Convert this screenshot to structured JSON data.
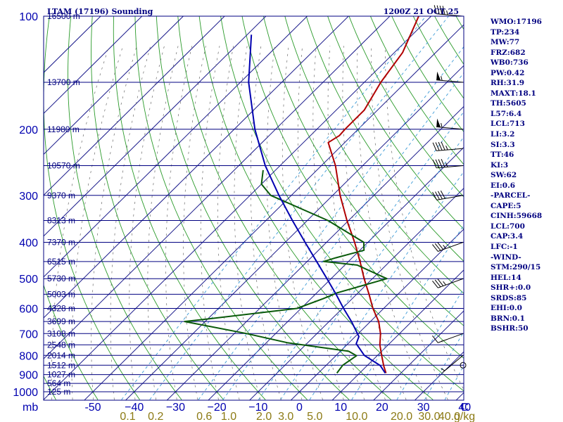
{
  "header": {
    "title": "LTAM (17196) Sounding",
    "time": "1200Z 21 OCT 25"
  },
  "indices": [
    "WMO:17196",
    "TP:234",
    "MW:77",
    "FRZ:682",
    "WB0:736",
    "PW:0.42",
    "RH:31.9",
    "MAXT:18.1",
    "TH:5605",
    "L57:6.4",
    "LCL:713",
    "LI:3.2",
    "SI:3.3",
    "TT:46",
    "KI:3",
    "SW:62",
    "EI:0.6",
    "-PARCEL-",
    "CAPE:5",
    "CINH:59668",
    "LCL:700",
    "CAP:3.4",
    "LFC:-1",
    "-WIND-",
    "STM:290/15",
    "HEL:14",
    "SHR+:0.0",
    "SRDS:85",
    "EHI:0.0",
    "BRN:0.1",
    "BSHR:50"
  ],
  "colors": {
    "isobar": "#000080",
    "isotherm": "#1c1c8c",
    "dry_adiabat": "#2a9a2a",
    "mixing_ratio": "#6b6b6b",
    "temperature": "#b00000",
    "dewpoint": "#0a5a0a",
    "parcel": "#0000b0",
    "wind": "#000000"
  },
  "chart_data": {
    "type": "skew-t",
    "pressure_unit": "mb",
    "temperature_unit": "C",
    "pressure_ticks": [
      100,
      200,
      300,
      400,
      500,
      600,
      700,
      800,
      900,
      1000
    ],
    "temperature_ticks": [
      -50,
      -40,
      -30,
      -20,
      -10,
      0,
      10,
      20,
      30,
      40
    ],
    "temperature_tick_labels": [
      "-50",
      "−40",
      "−30",
      "−20",
      "−10",
      "0",
      "10",
      "20",
      "30",
      "40"
    ],
    "axis_unit_label": "mb",
    "corner_label": "C",
    "height_labels": [
      {
        "p": 100,
        "label": "16500 m"
      },
      {
        "p": 150,
        "label": "13700 m"
      },
      {
        "p": 200,
        "label": "11980 m"
      },
      {
        "p": 250,
        "label": "10570 m"
      },
      {
        "p": 300,
        "label": "9370 m"
      },
      {
        "p": 350,
        "label": "8313 m"
      },
      {
        "p": 400,
        "label": "7370 m"
      },
      {
        "p": 450,
        "label": "6515 m"
      },
      {
        "p": 500,
        "label": "5730 m"
      },
      {
        "p": 550,
        "label": "5003 m"
      },
      {
        "p": 600,
        "label": "4328 m"
      },
      {
        "p": 650,
        "label": "3699 m"
      },
      {
        "p": 700,
        "label": "3108 m"
      },
      {
        "p": 750,
        "label": "2548 m"
      },
      {
        "p": 800,
        "label": "2014 m"
      },
      {
        "p": 850,
        "label": "1512 m"
      },
      {
        "p": 900,
        "label": "1027 m"
      },
      {
        "p": 950,
        "label": "564 m"
      },
      {
        "p": 1000,
        "label": "125 m"
      }
    ],
    "mixing_ratio_labels": [
      "0.1",
      "0.2",
      "0.6",
      "1.0",
      "2.0",
      "3.0",
      "5.0",
      "10.0",
      "20.0",
      "30.0",
      "40.0"
    ],
    "mixing_ratio_values": [
      0.1,
      0.2,
      0.6,
      1.0,
      2.0,
      3.0,
      5.0,
      10.0,
      20.0,
      30.0,
      40.0
    ],
    "mixing_ratio_unit": "g/kg",
    "series": [
      {
        "name": "temperature",
        "points": [
          [
            892,
            16.4
          ],
          [
            852,
            14.0
          ],
          [
            800,
            11.0
          ],
          [
            750,
            8.0
          ],
          [
            700,
            5.4
          ],
          [
            650,
            2.0
          ],
          [
            600,
            -2.6
          ],
          [
            550,
            -7.0
          ],
          [
            500,
            -12.0
          ],
          [
            450,
            -17.2
          ],
          [
            400,
            -23.2
          ],
          [
            350,
            -30.4
          ],
          [
            300,
            -38.2
          ],
          [
            250,
            -46.6
          ],
          [
            217,
            -54.0
          ],
          [
            208,
            -53.0
          ],
          [
            200,
            -53.2
          ],
          [
            178,
            -53.2
          ],
          [
            150,
            -56.0
          ],
          [
            125,
            -58.0
          ],
          [
            100,
            -63.0
          ]
        ]
      },
      {
        "name": "dewpoint",
        "points": [
          [
            892,
            4.5
          ],
          [
            850,
            4.0
          ],
          [
            802,
            5.0
          ],
          [
            780,
            2.0
          ],
          [
            740,
            -15.0
          ],
          [
            700,
            -27.0
          ],
          [
            650,
            -45.0
          ],
          [
            640,
            -40.0
          ],
          [
            600,
            -21.0
          ],
          [
            565,
            -17.0
          ],
          [
            545,
            -15.0
          ],
          [
            500,
            -6.5
          ],
          [
            460,
            -17.0
          ],
          [
            450,
            -26.0
          ],
          [
            440,
            -24.0
          ],
          [
            420,
            -19.0
          ],
          [
            400,
            -21.0
          ],
          [
            350,
            -35.0
          ],
          [
            300,
            -55.0
          ],
          [
            280,
            -60.0
          ],
          [
            257,
            -63.0
          ]
        ]
      },
      {
        "name": "parcel",
        "points": [
          [
            892,
            16.2
          ],
          [
            852,
            13.2
          ],
          [
            800,
            6.8
          ],
          [
            745,
            2.0
          ],
          [
            713,
            0.9
          ],
          [
            650,
            -4.6
          ],
          [
            600,
            -9.7
          ],
          [
            550,
            -15.0
          ],
          [
            500,
            -21.0
          ],
          [
            450,
            -27.7
          ],
          [
            400,
            -35.2
          ],
          [
            350,
            -43.6
          ],
          [
            300,
            -53.0
          ],
          [
            250,
            -63.6
          ],
          [
            200,
            -75.0
          ],
          [
            150,
            -88.0
          ],
          [
            112,
            -99.0
          ]
        ]
      }
    ],
    "wind_barbs": [
      {
        "p": 100,
        "dir": 275,
        "kt": 45
      },
      {
        "p": 150,
        "dir": 275,
        "kt": 55
      },
      {
        "p": 200,
        "dir": 275,
        "kt": 55
      },
      {
        "p": 225,
        "dir": 265,
        "kt": 45
      },
      {
        "p": 250,
        "dir": 265,
        "kt": 45
      },
      {
        "p": 300,
        "dir": 260,
        "kt": 40
      },
      {
        "p": 400,
        "dir": 250,
        "kt": 35
      },
      {
        "p": 500,
        "dir": 250,
        "kt": 35
      },
      {
        "p": 700,
        "dir": 250,
        "kt": 10
      },
      {
        "p": 800,
        "dir": 230,
        "kt": 5
      },
      {
        "p": 850,
        "dir": 0,
        "kt": 0
      }
    ]
  }
}
